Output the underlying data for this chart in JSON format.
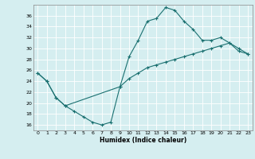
{
  "xlabel": "Humidex (Indice chaleur)",
  "bg_color": "#d5eef0",
  "grid_color": "#b8dde0",
  "line_color": "#1a7070",
  "xlim": [
    -0.5,
    23.5
  ],
  "ylim": [
    15,
    38
  ],
  "xticks": [
    0,
    1,
    2,
    3,
    4,
    5,
    6,
    7,
    8,
    9,
    10,
    11,
    12,
    13,
    14,
    15,
    16,
    17,
    18,
    19,
    20,
    21,
    22,
    23
  ],
  "yticks": [
    16,
    18,
    20,
    22,
    24,
    26,
    28,
    30,
    32,
    34,
    36
  ],
  "curve1_x": [
    0,
    1,
    2,
    3,
    4,
    5,
    6,
    7,
    8,
    9,
    10,
    11,
    12,
    13,
    14,
    15,
    16,
    17,
    18,
    19,
    20,
    21,
    22,
    23
  ],
  "curve1_y": [
    25.5,
    24.0,
    21.0,
    19.5,
    18.5,
    17.5,
    16.5,
    16.0,
    16.5,
    23.0,
    28.5,
    31.5,
    35.0,
    35.5,
    37.5,
    37.0,
    35.0,
    33.5,
    31.5,
    31.5,
    32.0,
    31.0,
    30.0,
    29.0
  ],
  "curve2_x": [
    0,
    1,
    2,
    3,
    9,
    10,
    11,
    12,
    13,
    14,
    15,
    16,
    17,
    18,
    19,
    20,
    21,
    22,
    23
  ],
  "curve2_y": [
    25.5,
    24.0,
    21.0,
    19.5,
    23.0,
    24.5,
    25.5,
    26.5,
    27.0,
    27.5,
    28.0,
    28.5,
    29.0,
    29.5,
    30.0,
    30.5,
    31.0,
    29.5,
    29.0
  ]
}
